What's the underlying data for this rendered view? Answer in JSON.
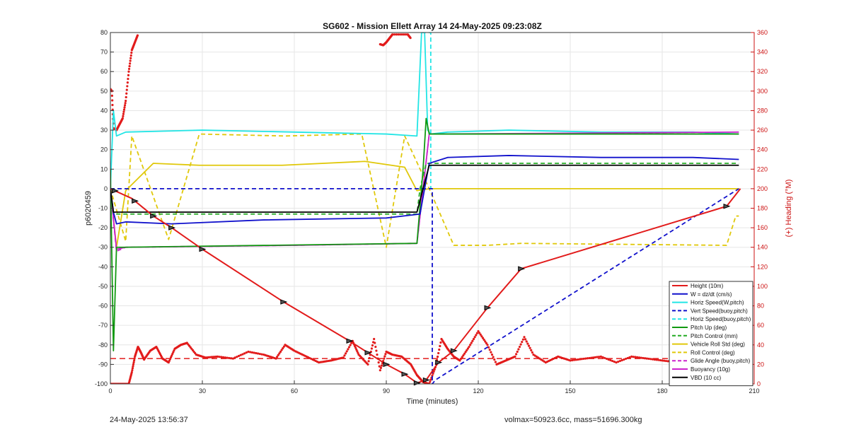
{
  "chart_data": {
    "type": "line",
    "title": "SG602 - Mission Ellett Array 14 24-May-2025 09:23:08Z",
    "xlabel": "Time (minutes)",
    "ylabel": "p6020459",
    "y2label": "(+) Heading (°M)",
    "xlim": [
      0,
      210
    ],
    "ylim": [
      -100,
      80
    ],
    "y2lim": [
      0,
      360
    ],
    "xticks": [
      0,
      30,
      60,
      90,
      120,
      150,
      180,
      210
    ],
    "yticks": [
      -100,
      -90,
      -80,
      -70,
      -60,
      -50,
      -40,
      -30,
      -20,
      -10,
      0,
      10,
      20,
      30,
      40,
      50,
      60,
      70,
      80
    ],
    "y2ticks": [
      0,
      20,
      40,
      60,
      80,
      100,
      120,
      140,
      160,
      180,
      200,
      220,
      240,
      260,
      280,
      300,
      320,
      340,
      360
    ],
    "grid": true,
    "legend_position": "bottom-right",
    "series": [
      {
        "name": "Height (10m)",
        "color": "#e21b1b",
        "style": "solid",
        "x": [
          0,
          7,
          14,
          20,
          30,
          56.5,
          78,
          84,
          90,
          96,
          100,
          103,
          107,
          112,
          123,
          134,
          201,
          205.5
        ],
        "y": [
          0,
          -5,
          -14,
          -20,
          -31,
          -58,
          -78,
          -84,
          -90,
          -95,
          -99.5,
          -98,
          -89,
          -83,
          -61,
          -41,
          -9,
          0
        ]
      },
      {
        "name": "W = dz/dt (cm/s)",
        "color": "#1111cc",
        "style": "solid",
        "x": [
          0,
          1,
          2,
          5,
          20,
          50,
          90,
          101,
          102.5,
          104,
          110,
          130,
          160,
          190,
          205
        ],
        "y": [
          0,
          -12,
          -18,
          -17,
          -18,
          -16,
          -15,
          -13,
          0,
          13,
          16,
          17,
          16,
          16,
          15
        ]
      },
      {
        "name": "Horiz Speed(W,pitch)",
        "color": "#22e5e5",
        "style": "solid",
        "x": [
          0,
          1,
          2,
          5,
          30,
          60,
          90,
          100,
          101.5,
          102.5,
          103.5,
          104.5,
          110,
          130,
          160,
          190,
          205
        ],
        "y": [
          0,
          40,
          27,
          29,
          30,
          29,
          28,
          27,
          80,
          80,
          30,
          28,
          29,
          30,
          29,
          29,
          28
        ]
      },
      {
        "name": "Vert Speed(buoy,pitch)",
        "color": "#1111cc",
        "style": "dashed",
        "x": [
          0,
          103,
          105,
          105,
          106,
          205
        ],
        "y": [
          0,
          0,
          0,
          -100,
          -98,
          0
        ]
      },
      {
        "name": "Horiz Speed(buoy,pitch)",
        "color": "#22e5e5",
        "style": "dashed",
        "x": [
          101.5,
          104.5,
          104.5
        ],
        "y": [
          80,
          80,
          0
        ]
      },
      {
        "name": "Pitch Up (deg)",
        "color": "#119911",
        "style": "solid",
        "x": [
          0,
          1,
          2,
          4,
          100,
          102,
          103,
          104,
          110,
          205
        ],
        "y": [
          10,
          -83,
          -30,
          -30,
          -28,
          10,
          36,
          28,
          28,
          28
        ]
      },
      {
        "name": "Pitch Control (mm)",
        "color": "#22aa22",
        "style": "dashed",
        "x": [
          0,
          1,
          3,
          100,
          101,
          103,
          205
        ],
        "y": [
          0,
          -13,
          -13,
          -13,
          0,
          13,
          13
        ]
      },
      {
        "name": "Vehicle Roll Std (deg)",
        "color": "#e0c80a",
        "style": "solid",
        "x": [
          0,
          2,
          5,
          14,
          29,
          56,
          83,
          96,
          100,
          104,
          205
        ],
        "y": [
          0,
          -30,
          -1,
          13,
          12,
          12,
          14,
          11,
          -1,
          0,
          0
        ]
      },
      {
        "name": "Roll Control (deg)",
        "color": "#e0c80a",
        "style": "dashed",
        "x": [
          0,
          5,
          7,
          19,
          29,
          57,
          82,
          90,
          96,
          104,
          112,
          123,
          134,
          201,
          204,
          205
        ],
        "y": [
          0,
          -27,
          27,
          -26,
          28,
          27,
          28,
          -30,
          27,
          0,
          -29,
          -29,
          -28,
          -29,
          -14,
          -14
        ]
      },
      {
        "name": "Glide Angle (buoy,pitch)",
        "color": "#cc22cc",
        "style": "dashed",
        "x": [
          0,
          2,
          5,
          60,
          100,
          104,
          205
        ],
        "y": [
          0,
          -32,
          -30,
          -29,
          -28,
          28,
          28
        ]
      },
      {
        "name": "Buoyancy (10g)",
        "color": "#cc22cc",
        "style": "solid",
        "x": [
          0,
          2,
          5,
          60,
          100,
          104,
          205
        ],
        "y": [
          0,
          -31,
          -30,
          -29,
          -28,
          28,
          29
        ]
      },
      {
        "name": "VBD (10 cc)",
        "color": "#000000",
        "style": "solid",
        "x": [
          0,
          1,
          3,
          100,
          102,
          104,
          205
        ],
        "y": [
          0,
          -12,
          -12,
          -12,
          0,
          12,
          12
        ]
      }
    ],
    "heading": {
      "axis": "right",
      "color": "#e21b1b",
      "reference_level": 26,
      "x": [
        0,
        2,
        4,
        6,
        7,
        8,
        9,
        10,
        11,
        13,
        15,
        17,
        19,
        21,
        23,
        25,
        28,
        31,
        35,
        40,
        45,
        50,
        54,
        57,
        60,
        64,
        68,
        72,
        76,
        79,
        81,
        84,
        86,
        88,
        90,
        92,
        95,
        98,
        100,
        102,
        104,
        106,
        108,
        110,
        112,
        114,
        117,
        120,
        123,
        126,
        129,
        132,
        135,
        138,
        142,
        146,
        150,
        155,
        160,
        165,
        170,
        175,
        180,
        185,
        190,
        195,
        198,
        201,
        203,
        205
      ],
      "y": [
        0,
        0,
        0,
        0,
        12,
        28,
        38,
        32,
        25,
        34,
        38,
        26,
        22,
        36,
        40,
        42,
        30,
        27,
        28,
        26,
        33,
        30,
        26,
        40,
        34,
        28,
        22,
        24,
        27,
        44,
        30,
        20,
        46,
        14,
        33,
        30,
        28,
        20,
        9,
        2,
        0,
        17,
        46,
        36,
        28,
        24,
        38,
        54,
        40,
        20,
        24,
        28,
        48,
        30,
        22,
        28,
        24,
        26,
        28,
        22,
        28,
        26,
        24,
        22,
        22,
        22,
        20,
        26,
        35,
        24
      ],
      "wrap_x": [
        0,
        0.5,
        1,
        2,
        3,
        4,
        5,
        6,
        7,
        8,
        9
      ],
      "wrap_y": [
        302,
        300,
        262,
        260,
        266,
        272,
        290,
        320,
        342,
        350,
        358
      ],
      "wrap2_x": [
        88,
        89,
        90,
        91,
        92,
        97,
        98
      ],
      "wrap2_y": [
        348,
        347,
        350,
        354,
        358,
        358,
        354
      ]
    },
    "markers_on_height": [
      1.5,
      8,
      14,
      20,
      30,
      56.5,
      78,
      84,
      90,
      96,
      100,
      103,
      107,
      112,
      123,
      134,
      201
    ]
  },
  "footer": {
    "timestamp": "24-May-2025 13:56:37",
    "stats": "volmax=50923.6cc, mass=51696.300kg"
  }
}
